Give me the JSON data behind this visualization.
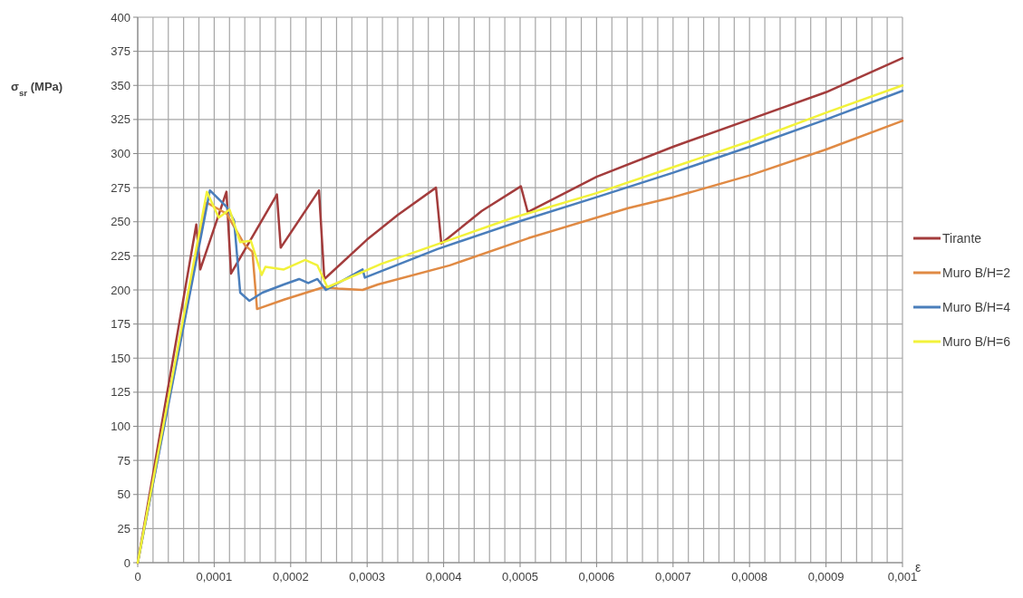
{
  "chart_data": {
    "type": "line",
    "xlabel": "ε",
    "ylabel": "σ$_{sr}$ (MPa)",
    "xlim": [
      0,
      0.001
    ],
    "ylim": [
      0,
      400
    ],
    "xticks": [
      {
        "value": 0,
        "label": "0"
      },
      {
        "value": 2e-05,
        "label": null
      },
      {
        "value": 4e-05,
        "label": null
      },
      {
        "value": 6e-05,
        "label": null
      },
      {
        "value": 8e-05,
        "label": null
      },
      {
        "value": 0.0001,
        "label": "0,0001"
      },
      {
        "value": 0.00012,
        "label": null
      },
      {
        "value": 0.00014,
        "label": null
      },
      {
        "value": 0.00016,
        "label": null
      },
      {
        "value": 0.00018,
        "label": null
      },
      {
        "value": 0.0002,
        "label": "0,0002"
      },
      {
        "value": 0.00022,
        "label": null
      },
      {
        "value": 0.00024,
        "label": null
      },
      {
        "value": 0.00026,
        "label": null
      },
      {
        "value": 0.00028,
        "label": null
      },
      {
        "value": 0.0003,
        "label": "0,0003"
      },
      {
        "value": 0.00032,
        "label": null
      },
      {
        "value": 0.00034,
        "label": null
      },
      {
        "value": 0.00036,
        "label": null
      },
      {
        "value": 0.00038,
        "label": null
      },
      {
        "value": 0.0004,
        "label": "0,0004"
      },
      {
        "value": 0.00042,
        "label": null
      },
      {
        "value": 0.00044,
        "label": null
      },
      {
        "value": 0.00046,
        "label": null
      },
      {
        "value": 0.00048,
        "label": null
      },
      {
        "value": 0.0005,
        "label": "0,0005"
      },
      {
        "value": 0.00052,
        "label": null
      },
      {
        "value": 0.00054,
        "label": null
      },
      {
        "value": 0.00056,
        "label": null
      },
      {
        "value": 0.00058,
        "label": null
      },
      {
        "value": 0.0006,
        "label": "0,0006"
      },
      {
        "value": 0.00062,
        "label": null
      },
      {
        "value": 0.00064,
        "label": null
      },
      {
        "value": 0.00066,
        "label": null
      },
      {
        "value": 0.00068,
        "label": null
      },
      {
        "value": 0.0007,
        "label": "0,0007"
      },
      {
        "value": 0.00072,
        "label": null
      },
      {
        "value": 0.00074,
        "label": null
      },
      {
        "value": 0.00076,
        "label": null
      },
      {
        "value": 0.00078,
        "label": null
      },
      {
        "value": 0.0008,
        "label": "0,0008"
      },
      {
        "value": 0.00082,
        "label": null
      },
      {
        "value": 0.00084,
        "label": null
      },
      {
        "value": 0.00086,
        "label": null
      },
      {
        "value": 0.00088,
        "label": null
      },
      {
        "value": 0.0009,
        "label": "0,0009"
      },
      {
        "value": 0.00092,
        "label": null
      },
      {
        "value": 0.00094,
        "label": null
      },
      {
        "value": 0.00096,
        "label": null
      },
      {
        "value": 0.00098,
        "label": null
      },
      {
        "value": 0.001,
        "label": "0,001"
      }
    ],
    "yticks": [
      0,
      25,
      50,
      75,
      100,
      125,
      150,
      175,
      200,
      225,
      250,
      275,
      300,
      325,
      350,
      375,
      400
    ],
    "grid": true,
    "legend": "right",
    "marker": "none",
    "line_style": "solid",
    "series": [
      {
        "name": "Tirante",
        "color": "#a33c3c",
        "x": [
          0,
          7.66e-05,
          8.18e-05,
          0.000116,
          0.000122,
          0.000182,
          0.000187,
          0.000237,
          0.000244,
          0.0003,
          0.00034,
          0.00039,
          0.000397,
          0.00045,
          0.000501,
          0.00051,
          0.0006,
          0.0007,
          0.0008,
          0.0009,
          0.001
        ],
        "values": [
          0,
          248,
          215,
          272,
          212,
          270,
          231,
          273,
          208,
          237,
          255,
          275,
          234,
          258,
          276,
          257,
          283,
          305,
          325,
          345,
          370
        ]
      },
      {
        "name": "Muro B/H=2",
        "color": "#e08a44",
        "x": [
          0,
          9.03e-05,
          0.000116,
          0.00014,
          0.00015,
          0.000156,
          0.000192,
          0.000243,
          0.000262,
          0.000294,
          0.000314,
          0.000408,
          0.000511,
          0.000641,
          0.0007,
          0.0008,
          0.0009,
          0.001
        ],
        "values": [
          0,
          264,
          256,
          233,
          228,
          186,
          193,
          202,
          201,
          200,
          204,
          218,
          238,
          260,
          268,
          284,
          303,
          324
        ]
      },
      {
        "name": "Muro B/H=4",
        "color": "#4a7ebb",
        "x": [
          0,
          9.44e-05,
          0.000116,
          0.000126,
          0.000134,
          0.000146,
          0.000163,
          0.000191,
          0.000211,
          0.000223,
          0.000235,
          0.000246,
          0.000294,
          0.000297,
          0.000392,
          0.000503,
          0.0006,
          0.0007,
          0.0008,
          0.0009,
          0.001
        ],
        "values": [
          0,
          273,
          261,
          251,
          198,
          192,
          198,
          204,
          208,
          205,
          208,
          200,
          215,
          209,
          230,
          251,
          268,
          286,
          305,
          325,
          346
        ]
      },
      {
        "name": "Muro B/H=6",
        "color": "#f2f23a",
        "x": [
          0,
          9.04e-05,
          0.000106,
          0.00012,
          0.000134,
          0.000148,
          0.000162,
          0.000167,
          0.000191,
          0.000219,
          0.000235,
          0.000248,
          0.000318,
          0.000491,
          0.0006,
          0.0007,
          0.0008,
          0.0009,
          0.001
        ],
        "values": [
          0,
          272,
          253,
          259,
          235,
          236,
          211,
          217,
          215,
          222,
          218,
          202,
          219,
          253,
          271,
          290,
          309,
          330,
          350
        ]
      }
    ]
  }
}
